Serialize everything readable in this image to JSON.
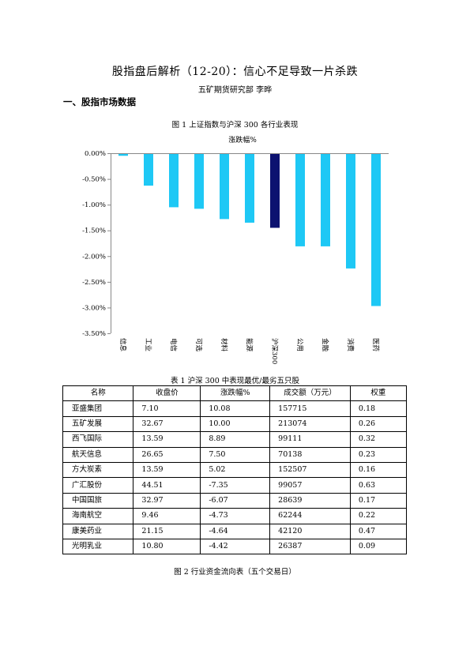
{
  "doc": {
    "title": "股指盘后解析（12-20）：信心不足导致一片杀跌",
    "author": "五矿期货研究部    李晔",
    "section1": "一、股指市场数据"
  },
  "figure1": {
    "caption": "图 1    上证指数与沪深 300 各行业表现"
  },
  "table1": {
    "caption": "表 1    沪深 300 中表现最优/最劣五只股",
    "headers": [
      "名称",
      "收盘价",
      "涨跌幅%",
      "成交额（万元）",
      "权重"
    ],
    "rows": [
      [
        "亚盛集团",
        "7.10",
        "10.08",
        "157715",
        "0.18"
      ],
      [
        "五矿发展",
        "32.67",
        "10.00",
        "213074",
        "0.26"
      ],
      [
        "西飞国际",
        "13.59",
        "8.89",
        "99111",
        "0.32"
      ],
      [
        "航天信息",
        "26.65",
        "7.50",
        "70138",
        "0.23"
      ],
      [
        "方大炭素",
        "13.59",
        "5.02",
        "152507",
        "0.16"
      ],
      [
        "广汇股份",
        "44.51",
        "-7.35",
        "99057",
        "0.63"
      ],
      [
        "中国国旅",
        " 32.97",
        "-6.07",
        "28639",
        "0.17"
      ],
      [
        "海南航空",
        "9.46",
        "-4.73",
        "62244",
        "0.22"
      ],
      [
        "康美药业",
        "21.15",
        "-4.64",
        "42120",
        "0.47"
      ],
      [
        "光明乳业",
        "10.80",
        "-4.42",
        "26387",
        "0.09"
      ]
    ]
  },
  "figure2": {
    "caption": "图 2    行业资金流向表（五个交易日）"
  },
  "chart_data": {
    "type": "bar",
    "title": "涨跌幅%",
    "categories": [
      "信息",
      "工业",
      "电信",
      "可选",
      "材料",
      "能源",
      "沪深300",
      "公用",
      "金融",
      "消费",
      "医药"
    ],
    "values": [
      -0.05,
      -0.63,
      -1.05,
      -1.08,
      -1.28,
      -1.35,
      -1.45,
      -1.81,
      -1.81,
      -2.24,
      -2.97
    ],
    "ylim": [
      -3.5,
      0
    ],
    "yticks": [
      "0.00%",
      "-0.50%",
      "-1.00%",
      "-1.50%",
      "-2.00%",
      "-2.50%",
      "-3.00%",
      "-3.50%"
    ],
    "grid": false,
    "colors": {
      "bar": "#1EC8F5",
      "highlight": "#0C1270",
      "axis": "#888888"
    },
    "highlight_index": 6
  }
}
